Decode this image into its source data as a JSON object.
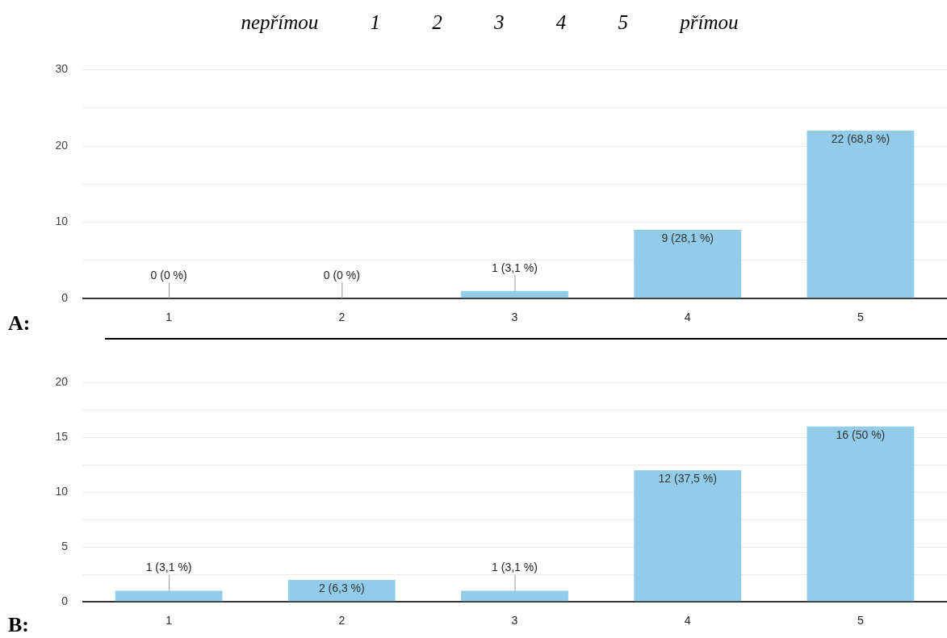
{
  "chart_data": [
    {
      "type": "bar",
      "title": "A:",
      "annotations": [
        "nepřímou 1 2 3 4 5 přímou"
      ],
      "categories": [
        "1",
        "2",
        "3",
        "4",
        "5"
      ],
      "values": [
        0,
        0,
        1,
        9,
        22
      ],
      "color": "#92cce8",
      "value_labels": [
        "0 (0 %)",
        "0 (0 %)",
        "1 (3,1 %)",
        "9 (28,1 %)",
        "22 (68,8 %)"
      ],
      "ylim": [
        0,
        30
      ],
      "yticks": [
        0,
        {
          "value": 5,
          "label": null
        },
        10,
        {
          "value": 15,
          "label": null
        },
        20,
        {
          "value": 25,
          "label": null
        },
        30
      ],
      "grid": "y"
    },
    {
      "type": "bar",
      "title": "B:",
      "categories": [
        "1",
        "2",
        "3",
        "4",
        "5"
      ],
      "values": [
        1,
        2,
        1,
        12,
        16
      ],
      "color": "#92cce8",
      "value_labels": [
        "1 (3,1 %)",
        "2 (6,3 %)",
        "1 (3,1 %)",
        "12 (37,5 %)",
        "16 (50 %)"
      ],
      "ylim": [
        0,
        20
      ],
      "yticks": [
        0,
        {
          "value": 2.5,
          "label": null
        },
        5,
        {
          "value": 7.5,
          "label": null
        },
        10,
        {
          "value": 12.5,
          "label": null
        },
        15,
        {
          "value": 17.5,
          "label": null
        },
        20
      ],
      "grid": "y"
    }
  ]
}
